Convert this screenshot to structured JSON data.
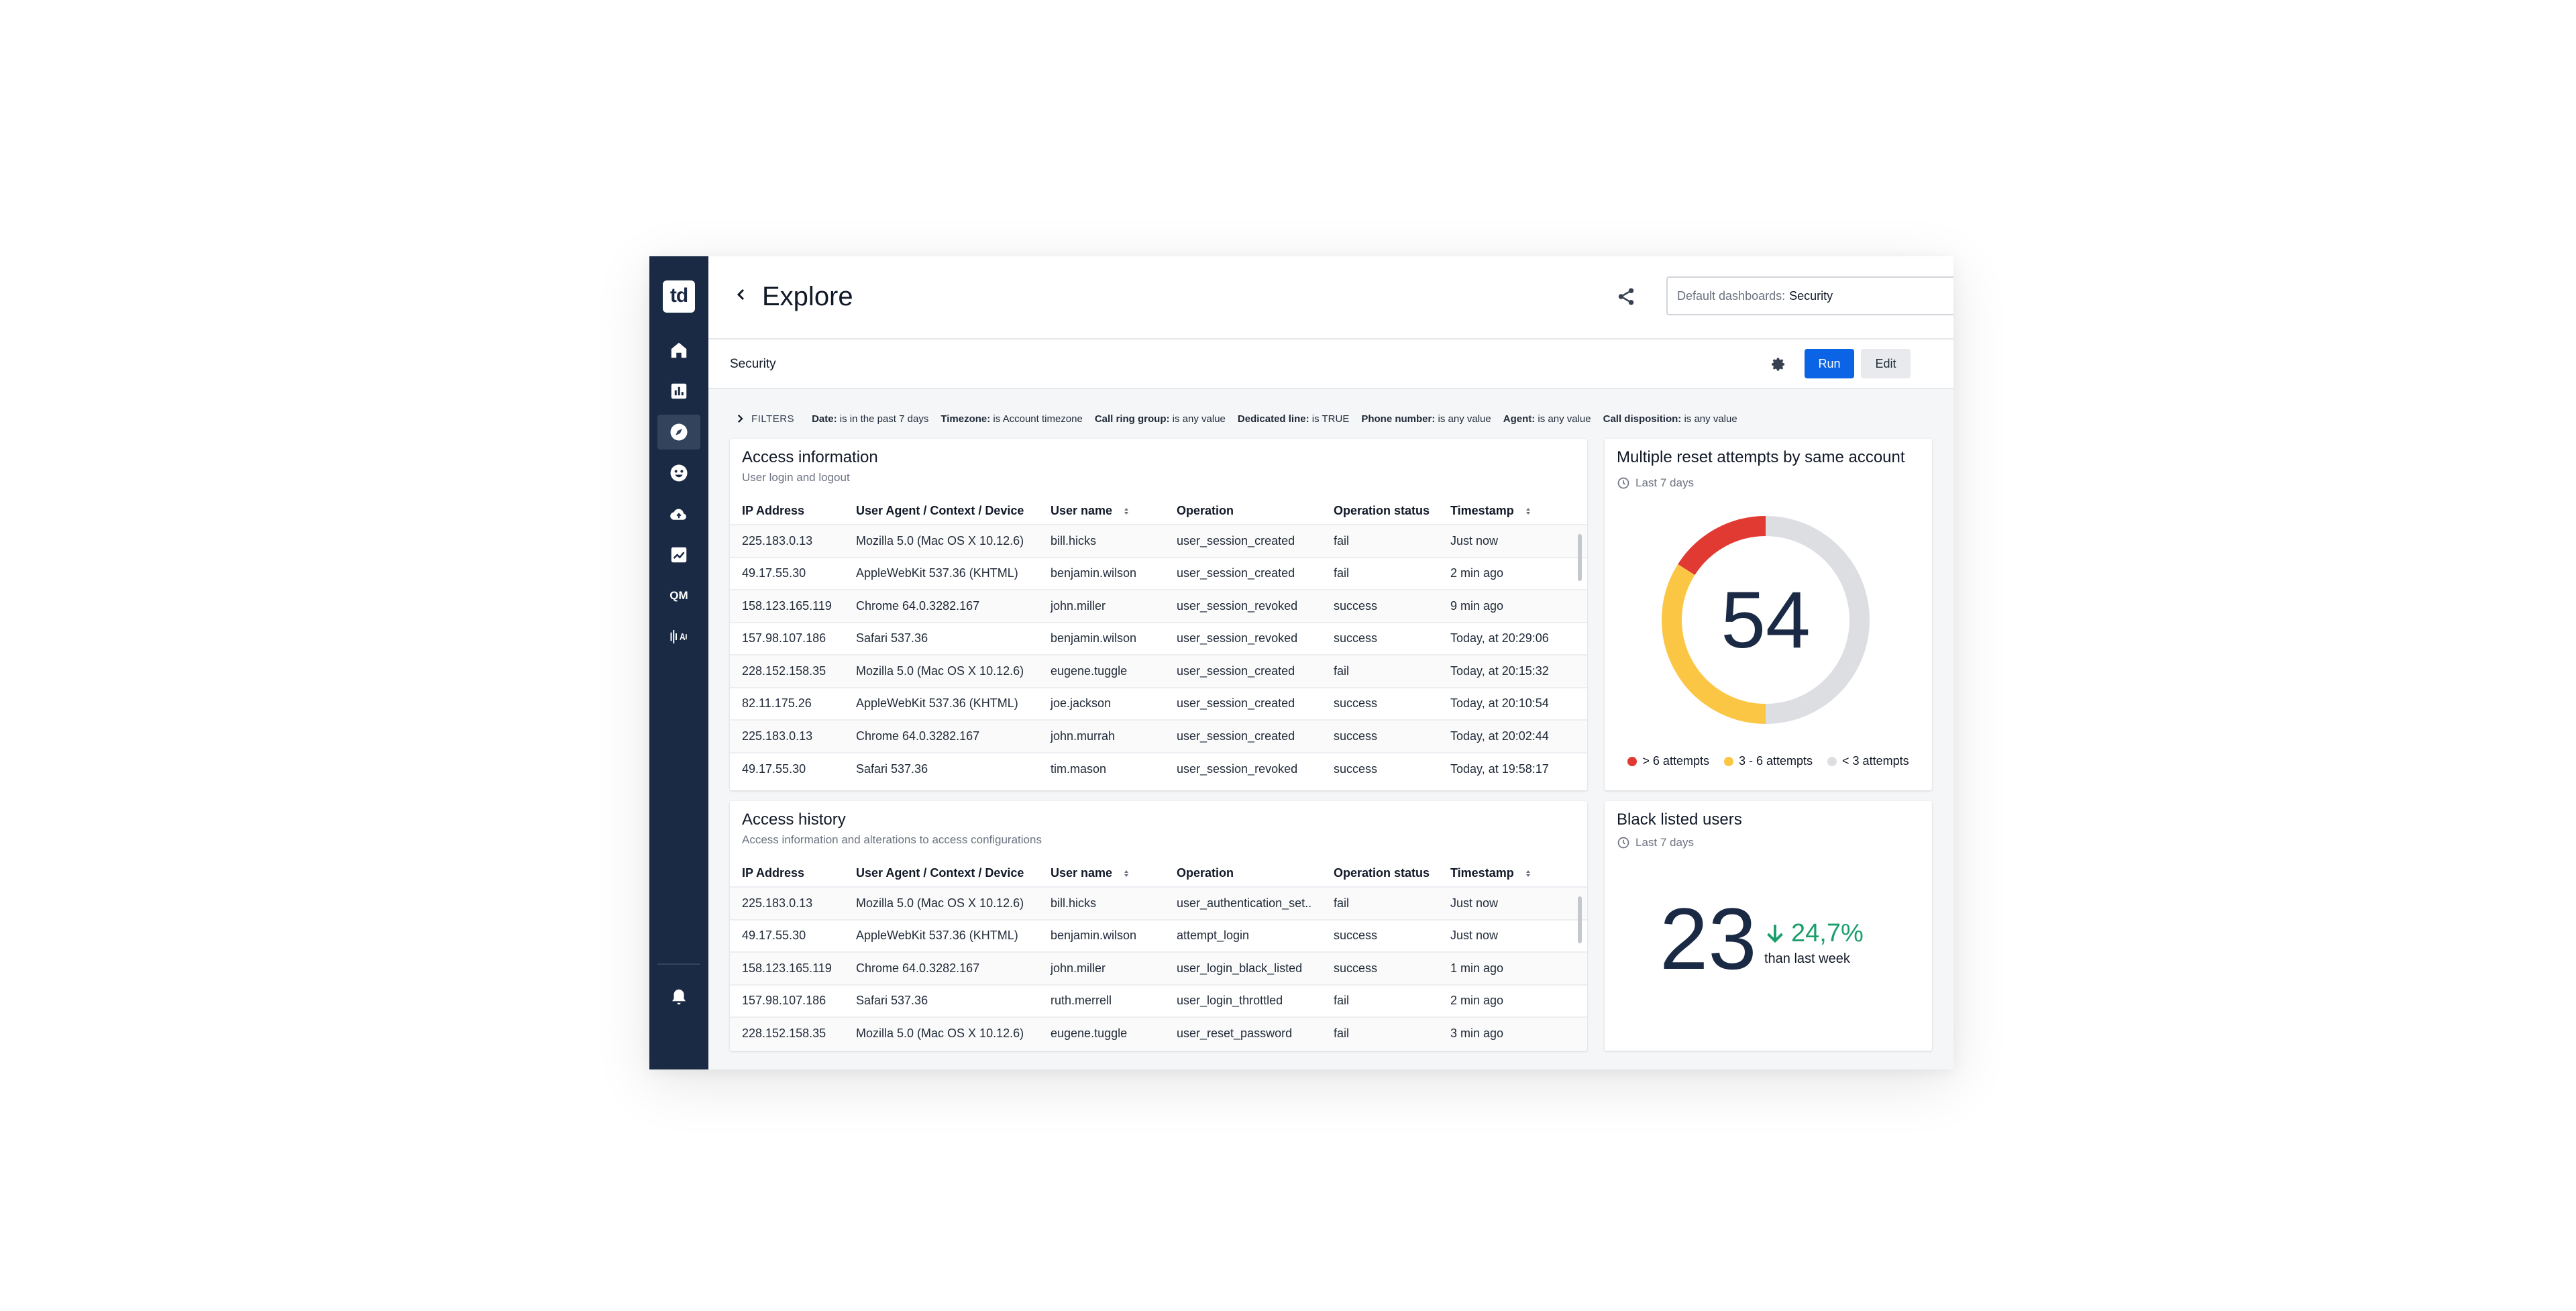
{
  "app": {
    "logo": "td"
  },
  "sidebar": {
    "items": [
      {
        "icon": "home-icon"
      },
      {
        "icon": "bar-chart-icon"
      },
      {
        "icon": "compass-icon",
        "active": true
      },
      {
        "icon": "smiley-icon"
      },
      {
        "icon": "cloud-icon"
      },
      {
        "icon": "trend-icon"
      },
      {
        "icon": "qm-icon",
        "text": "QM"
      },
      {
        "icon": "audio-icon"
      }
    ],
    "bottom": {
      "icon": "bell-icon"
    }
  },
  "header": {
    "title": "Explore",
    "dashboard_select": {
      "label": "Default dashboards:",
      "value": "Security"
    }
  },
  "subheader": {
    "title": "Security",
    "run_label": "Run",
    "edit_label": "Edit"
  },
  "filters": {
    "label": "FILTERS",
    "items": [
      {
        "key": "Date:",
        "value": "is in the past 7 days"
      },
      {
        "key": "Timezone:",
        "value": "is Account timezone"
      },
      {
        "key": "Call ring group:",
        "value": "is any value"
      },
      {
        "key": "Dedicated line:",
        "value": "is TRUE"
      },
      {
        "key": "Phone number:",
        "value": "is any value"
      },
      {
        "key": "Agent:",
        "value": "is any value"
      },
      {
        "key": "Call disposition:",
        "value": "is any value"
      }
    ]
  },
  "access_info": {
    "title": "Access information",
    "subtitle": "User login and logout",
    "columns": [
      "IP Address",
      "User Agent / Context / Device",
      "User name",
      "Operation",
      "Operation status",
      "Timestamp"
    ],
    "rows": [
      [
        "225.183.0.13",
        "Mozilla 5.0 (Mac OS X 10.12.6)",
        "bill.hicks",
        "user_session_created",
        "fail",
        "Just now"
      ],
      [
        "49.17.55.30",
        "AppleWebKit 537.36 (KHTML)",
        "benjamin.wilson",
        "user_session_created",
        "fail",
        "2 min ago"
      ],
      [
        "158.123.165.119",
        "Chrome 64.0.3282.167",
        "john.miller",
        "user_session_revoked",
        "success",
        "9 min ago"
      ],
      [
        "157.98.107.186",
        "Safari 537.36",
        "benjamin.wilson",
        "user_session_revoked",
        "success",
        "Today, at 20:29:06"
      ],
      [
        "228.152.158.35",
        "Mozilla 5.0 (Mac OS X 10.12.6)",
        "eugene.tuggle",
        "user_session_created",
        "fail",
        "Today, at 20:15:32"
      ],
      [
        "82.11.175.26",
        "AppleWebKit 537.36 (KHTML)",
        "joe.jackson",
        "user_session_created",
        "success",
        "Today, at 20:10:54"
      ],
      [
        "225.183.0.13",
        "Chrome 64.0.3282.167",
        "john.murrah",
        "user_session_created",
        "success",
        "Today, at 20:02:44"
      ],
      [
        "49.17.55.30",
        "Safari 537.36",
        "tim.mason",
        "user_session_revoked",
        "success",
        "Today, at 19:58:17"
      ]
    ]
  },
  "access_history": {
    "title": "Access history",
    "subtitle": "Access information and alterations to access configurations",
    "columns": [
      "IP Address",
      "User Agent / Context / Device",
      "User name",
      "Operation",
      "Operation status",
      "Timestamp"
    ],
    "rows": [
      [
        "225.183.0.13",
        "Mozilla 5.0 (Mac OS X 10.12.6)",
        "bill.hicks",
        "user_authentication_set..",
        "fail",
        "Just now"
      ],
      [
        "49.17.55.30",
        "AppleWebKit 537.36 (KHTML)",
        "benjamin.wilson",
        "attempt_login",
        "success",
        "Just now"
      ],
      [
        "158.123.165.119",
        "Chrome 64.0.3282.167",
        "john.miller",
        "user_login_black_listed",
        "success",
        "1 min ago"
      ],
      [
        "157.98.107.186",
        "Safari 537.36",
        "ruth.merrell",
        "user_login_throttled",
        "fail",
        "2 min ago"
      ],
      [
        "228.152.158.35",
        "Mozilla 5.0 (Mac OS X 10.12.6)",
        "eugene.tuggle",
        "user_reset_password",
        "fail",
        "3 min ago"
      ]
    ]
  },
  "reset_attempts": {
    "title": "Multiple reset attempts by same account",
    "period": "Last 7 days",
    "value": "54"
  },
  "chart_data": {
    "type": "pie",
    "title": "Multiple reset attempts by same account",
    "center_label": "54",
    "categories": [
      "> 6 attempts",
      "3 - 6 attempts",
      "< 3 attempts"
    ],
    "values": [
      0.16,
      0.34,
      0.5
    ],
    "colors": [
      "#e03a32",
      "#fcc645",
      "#dcdee2"
    ],
    "legend_position": "bottom"
  },
  "blacklisted": {
    "title": "Black listed users",
    "period": "Last 7 days",
    "value": "23",
    "delta": "24,7%",
    "delta_note": "than last week",
    "delta_color": "#1a9e6b"
  }
}
